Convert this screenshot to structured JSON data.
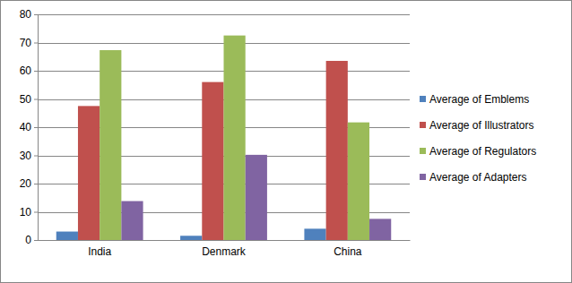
{
  "chart_data": {
    "type": "bar",
    "categories": [
      "India",
      "Denmark",
      "China"
    ],
    "series": [
      {
        "name": "Average of Emblems",
        "color": "#4f81bd",
        "values": [
          3,
          1.5,
          4
        ]
      },
      {
        "name": "Average of Illustrators",
        "color": "#c0504d",
        "values": [
          47.5,
          56,
          63.5
        ]
      },
      {
        "name": "Average of Regulators",
        "color": "#9bbb59",
        "values": [
          67.3,
          72.5,
          41.7
        ]
      },
      {
        "name": "Average of Adapters",
        "color": "#8064a2",
        "values": [
          13.8,
          30.2,
          7.5
        ]
      }
    ],
    "ylim": [
      0,
      80
    ],
    "yticks": [
      0,
      10,
      20,
      30,
      40,
      50,
      60,
      70,
      80
    ],
    "grid": true,
    "legend": "right"
  }
}
